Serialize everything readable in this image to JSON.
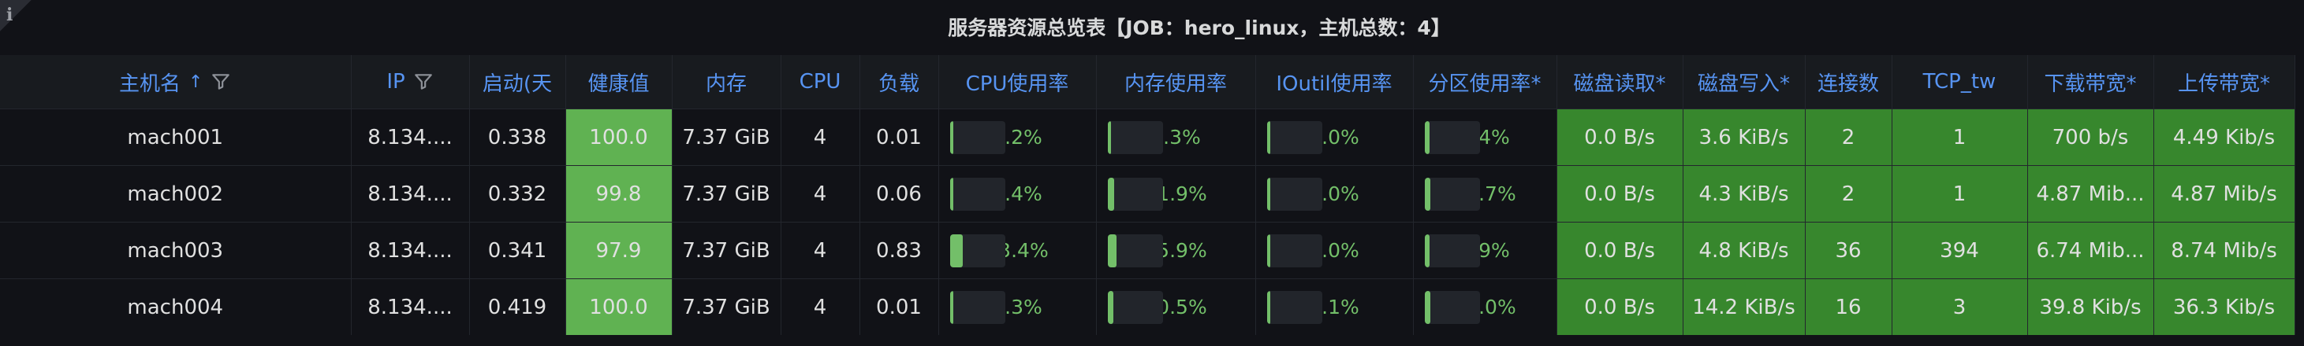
{
  "panel": {
    "title": "服务器资源总览表【JOB：hero_linux，主机总数：4】",
    "info_icon": "info-icon"
  },
  "columns": [
    "主机名",
    "IP",
    "启动(天",
    "健康值",
    "内存",
    "CPU",
    "负载",
    "CPU使用率",
    "内存使用率",
    "IOutil使用率",
    "分区使用率*",
    "磁盘读取*",
    "磁盘写入*",
    "连接数",
    "TCP_tw",
    "下载带宽*",
    "上传带宽*"
  ],
  "sort": {
    "column": "主机名",
    "direction": "ascending",
    "icon": "sort-ascending-icon"
  },
  "colors": {
    "accent": "#5794f2",
    "health_bg": "#60b252",
    "green_cell": "#37872d",
    "bar": "#73bf69",
    "background": "#111217"
  },
  "rows": [
    {
      "host": "mach001",
      "ip": "8.134....",
      "uptime": "0.338",
      "health": "100.0",
      "memory": "7.37 GiB",
      "cpu": "4",
      "load": "0.01",
      "cpu_usage": "0.2%",
      "cpu_usage_pct": 0.2,
      "mem_usage": "6.3%",
      "mem_usage_pct": 6.3,
      "ioutil": "0.0%",
      "ioutil_pct": 0.0,
      "partition": "9.4%",
      "partition_pct": 9.4,
      "disk_read": "0.0 B/s",
      "disk_write": "3.6 KiB/s",
      "connections": "2",
      "tcp_tw": "1",
      "download": "700 b/s",
      "upload": "4.49 Kib/s"
    },
    {
      "host": "mach002",
      "ip": "8.134....",
      "uptime": "0.332",
      "health": "99.8",
      "memory": "7.37 GiB",
      "cpu": "4",
      "load": "0.06",
      "cpu_usage": "3.4%",
      "cpu_usage_pct": 3.4,
      "mem_usage": "11.9%",
      "mem_usage_pct": 11.9,
      "ioutil": "0.0%",
      "ioutil_pct": 0.0,
      "partition": "10.7%",
      "partition_pct": 10.7,
      "disk_read": "0.0 B/s",
      "disk_write": "4.3 KiB/s",
      "connections": "2",
      "tcp_tw": "1",
      "download": "4.87 Mib...",
      "upload": "4.87 Mib/s"
    },
    {
      "host": "mach003",
      "ip": "8.134....",
      "uptime": "0.341",
      "health": "97.9",
      "memory": "7.37 GiB",
      "cpu": "4",
      "load": "0.83",
      "cpu_usage": "23.4%",
      "cpu_usage_pct": 23.4,
      "mem_usage": "15.9%",
      "mem_usage_pct": 15.9,
      "ioutil": "0.0%",
      "ioutil_pct": 0.0,
      "partition": "9.9%",
      "partition_pct": 9.9,
      "disk_read": "0.0 B/s",
      "disk_write": "4.8 KiB/s",
      "connections": "36",
      "tcp_tw": "394",
      "download": "6.74 Mib...",
      "upload": "8.74 Mib/s"
    },
    {
      "host": "mach004",
      "ip": "8.134....",
      "uptime": "0.419",
      "health": "100.0",
      "memory": "7.37 GiB",
      "cpu": "4",
      "load": "0.01",
      "cpu_usage": "0.3%",
      "cpu_usage_pct": 0.3,
      "mem_usage": "10.5%",
      "mem_usage_pct": 10.5,
      "ioutil": "0.1%",
      "ioutil_pct": 0.1,
      "partition": "10.0%",
      "partition_pct": 10.0,
      "disk_read": "0.0 B/s",
      "disk_write": "14.2 KiB/s",
      "connections": "16",
      "tcp_tw": "3",
      "download": "39.8 Kib/s",
      "upload": "36.3 Kib/s"
    }
  ]
}
